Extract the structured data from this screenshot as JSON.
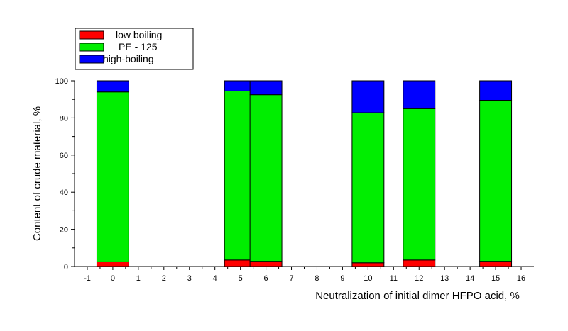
{
  "chart_data": {
    "type": "bar",
    "stacked": true,
    "xlabel": "Neutralization of initial dimer HFPO acid, %",
    "ylabel": "Content of crude material, %",
    "xlim": [
      -1.5,
      16.5
    ],
    "ylim": [
      0,
      100
    ],
    "xticks": [
      "-1",
      "0",
      "1",
      "2",
      "3",
      "4",
      "5",
      "6",
      "7",
      "8",
      "9",
      "10",
      "11",
      "12",
      "13",
      "14",
      "15",
      "16"
    ],
    "yticks": [
      "0",
      "20",
      "40",
      "60",
      "80",
      "100"
    ],
    "x": [
      0,
      5,
      6,
      10,
      12,
      15
    ],
    "bar_width": 1.25,
    "series": [
      {
        "name": "low boiling",
        "color": "#ff0000",
        "values": [
          2.5,
          3.5,
          2.8,
          2.0,
          3.5,
          2.8
        ]
      },
      {
        "name": "PE - 125",
        "color": "#00ee00",
        "values": [
          91.5,
          91.0,
          89.7,
          80.8,
          81.5,
          86.7
        ]
      },
      {
        "name": "high-boiling",
        "color": "#0000ff",
        "values": [
          6.0,
          5.5,
          7.5,
          17.2,
          15.0,
          10.5
        ]
      }
    ],
    "legend": "top-left",
    "grid": false
  }
}
